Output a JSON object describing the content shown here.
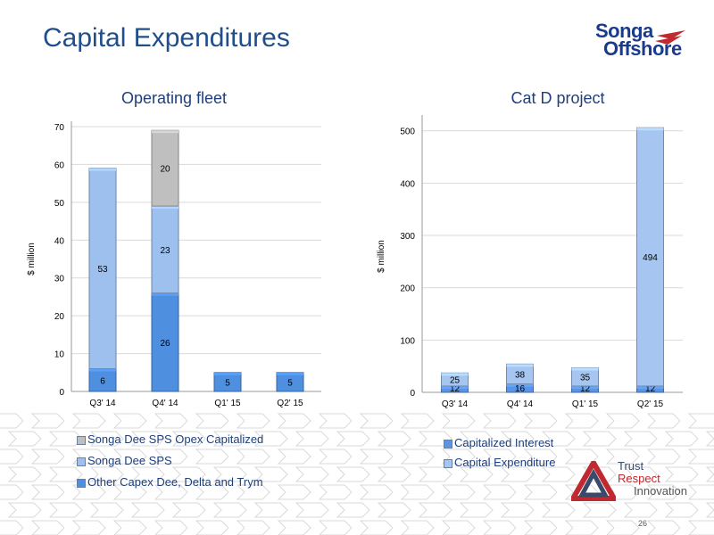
{
  "page": {
    "title": "Capital Expenditures",
    "page_number": "26",
    "logo": {
      "line1": "Songa",
      "line2": "Offshore"
    },
    "tagline": [
      "Trust",
      "Respect",
      "Innovation"
    ]
  },
  "colors": {
    "title": "#1f4e8c",
    "opex": "#bfbfbf",
    "sps": "#9dc0ee",
    "other": "#4f8fe0",
    "capitalized_interest": "#5a95e5",
    "capital_expenditure": "#a6c6f1"
  },
  "chart_data": [
    {
      "type": "bar",
      "stacked": true,
      "title": "Operating fleet",
      "xlabel": "",
      "ylabel": "$ million",
      "categories": [
        "Q3' 14",
        "Q4' 14",
        "Q1' 15",
        "Q2' 15"
      ],
      "ylim": [
        0,
        70
      ],
      "yticks": [
        0,
        10,
        20,
        30,
        40,
        50,
        60,
        70
      ],
      "grid": true,
      "legend_position": "bottom",
      "series": [
        {
          "name": "Other Capex Dee, Delta and Trym",
          "values": [
            6,
            26,
            5,
            5
          ],
          "color": "#4f8fe0"
        },
        {
          "name": "Songa Dee SPS",
          "values": [
            53,
            23,
            0,
            0
          ],
          "color": "#9dc0ee"
        },
        {
          "name": "Songa Dee SPS Opex Capitalized",
          "values": [
            0,
            20,
            0,
            0
          ],
          "color": "#bfbfbf"
        }
      ],
      "data_labels": [
        [
          "6",
          "26",
          "5",
          "5"
        ],
        [
          "53",
          "23",
          "",
          ""
        ],
        [
          "",
          "20",
          "",
          ""
        ]
      ]
    },
    {
      "type": "bar",
      "stacked": true,
      "title": "Cat D project",
      "xlabel": "",
      "ylabel": "$ million",
      "categories": [
        "Q3' 14",
        "Q4' 14",
        "Q1' 15",
        "Q2' 15"
      ],
      "ylim": [
        0,
        520
      ],
      "yticks": [
        0,
        100,
        200,
        300,
        400,
        500
      ],
      "grid": true,
      "legend_position": "bottom",
      "series": [
        {
          "name": "Capitalized Interest",
          "values": [
            12,
            16,
            12,
            12
          ],
          "color": "#5a95e5"
        },
        {
          "name": "Capital Expenditure",
          "values": [
            25,
            38,
            35,
            494
          ],
          "color": "#a6c6f1"
        }
      ],
      "data_labels": [
        [
          "12",
          "16",
          "12",
          "12"
        ],
        [
          "25",
          "38",
          "35",
          "494"
        ]
      ]
    }
  ],
  "legend_left": [
    "Songa Dee SPS Opex Capitalized",
    "Songa Dee SPS",
    "Other Capex Dee, Delta and Trym"
  ],
  "legend_right": [
    "Capitalized Interest",
    "Capital Expenditure"
  ]
}
